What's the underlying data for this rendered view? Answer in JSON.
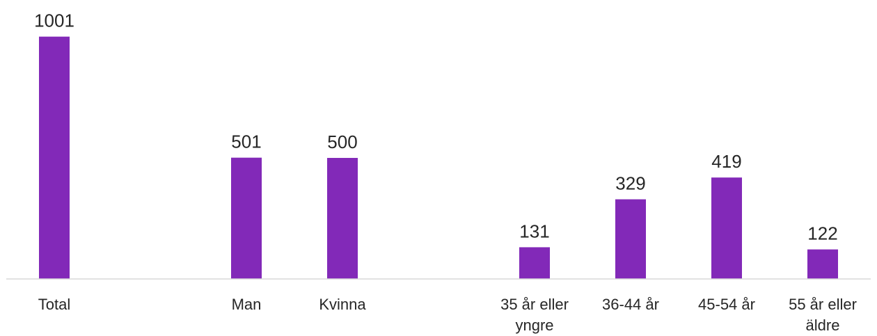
{
  "chart_data": {
    "type": "bar",
    "categories": [
      "Total",
      null,
      "Man",
      "Kvinna",
      null,
      "35 år eller yngre",
      "36-44 år",
      "45-54 år",
      "55 år eller äldre"
    ],
    "values": [
      1001,
      null,
      501,
      500,
      null,
      131,
      329,
      419,
      122
    ],
    "color": "#8229b8",
    "ylim": [
      0,
      1000
    ]
  }
}
